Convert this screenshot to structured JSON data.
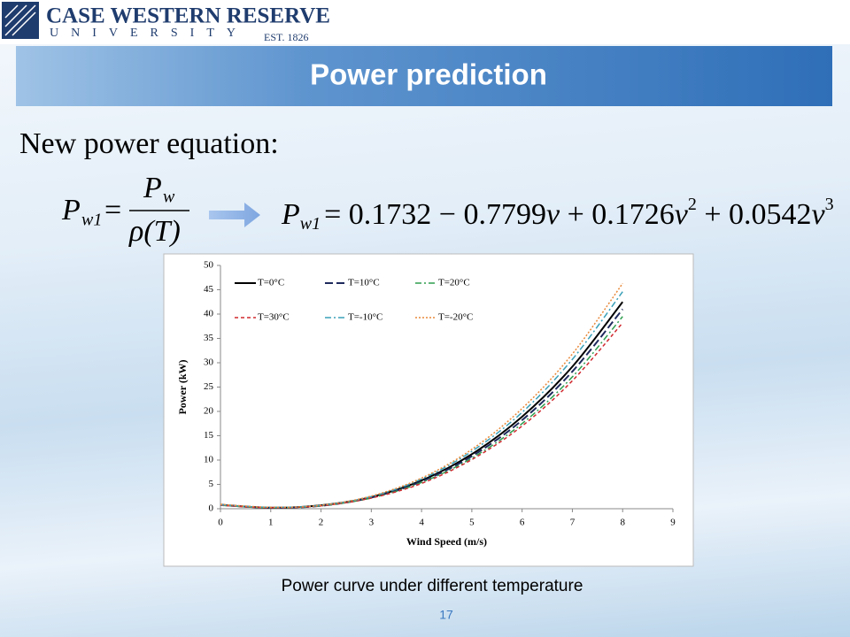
{
  "logo": {
    "name": "CASE WESTERN RESERVE",
    "sub": "UNIVERSITY",
    "est": "EST. 1826"
  },
  "header": {
    "title": "Power prediction"
  },
  "heading": "New power equation:",
  "equation1": {
    "lhs": "P",
    "lhs_sub": "w1",
    "eq": "=",
    "num": "P",
    "num_sub": "w",
    "den": "ρ(T)"
  },
  "equation2": {
    "lhs": "P",
    "lhs_sub": "w1",
    "terms": [
      "= 0.1732 − 0.7799",
      "v",
      " + 0.1726",
      "v",
      "2",
      " + 0.0542",
      "v",
      "3"
    ]
  },
  "chart_data": {
    "type": "line",
    "x_label": "Wind Speed (m/s)",
    "y_label": "Power (kW)",
    "x": [
      0,
      1,
      2,
      3,
      4,
      5,
      6,
      7,
      8
    ],
    "series": [
      {
        "name": "T=0°C",
        "color": "#000000",
        "values": [
          0.8,
          0.2,
          0.7,
          2.4,
          5.8,
          11.2,
          18.9,
          29.2,
          42.5
        ]
      },
      {
        "name": "T=10°C",
        "color": "#1f2a5c",
        "values": [
          0.8,
          0.2,
          0.6,
          2.3,
          5.6,
          10.8,
          18.2,
          28.2,
          41.0
        ]
      },
      {
        "name": "T=20°C",
        "color": "#2e9e4f",
        "values": [
          0.7,
          0.2,
          0.6,
          2.2,
          5.4,
          10.4,
          17.5,
          27.1,
          39.5
        ]
      },
      {
        "name": "T=30°C",
        "color": "#d0282e",
        "values": [
          0.7,
          0.2,
          0.6,
          2.2,
          5.2,
          10.1,
          17.0,
          26.3,
          38.2
        ]
      },
      {
        "name": "T=-10°C",
        "color": "#3aa0b8",
        "values": [
          0.8,
          0.3,
          0.7,
          2.5,
          6.1,
          11.8,
          19.8,
          30.7,
          44.6
        ]
      },
      {
        "name": "T=-20°C",
        "color": "#e8893a",
        "values": [
          0.9,
          0.3,
          0.7,
          2.6,
          6.3,
          12.2,
          20.6,
          31.8,
          46.3
        ]
      }
    ],
    "xlim": [
      0,
      9
    ],
    "xticks": [
      0,
      1,
      2,
      3,
      4,
      5,
      6,
      7,
      8,
      9
    ],
    "ylim": [
      0,
      50
    ],
    "yticks": [
      0,
      5,
      10,
      15,
      20,
      25,
      30,
      35,
      40,
      45,
      50
    ],
    "grid": false
  },
  "caption": "Power curve under different temperature",
  "page_number": "17"
}
